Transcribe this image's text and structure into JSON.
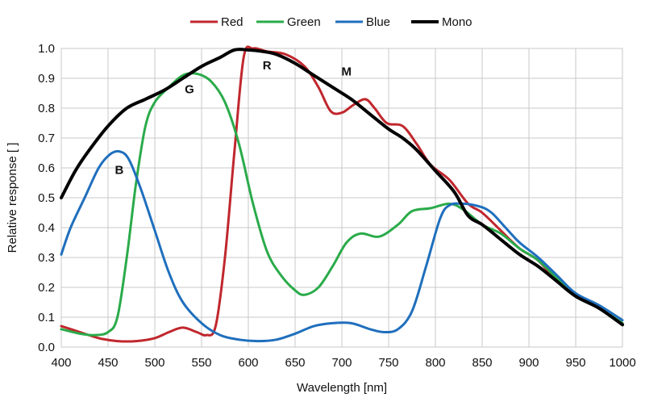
{
  "chart_data": {
    "type": "line",
    "title": "",
    "xlabel": "Wavelength [nm]",
    "ylabel": "Relative response [ ]",
    "xlim": [
      400,
      1000
    ],
    "ylim": [
      0.0,
      1.0
    ],
    "x_ticks": [
      "400",
      "450",
      "500",
      "550",
      "600",
      "650",
      "700",
      "750",
      "800",
      "850",
      "900",
      "950",
      "1000"
    ],
    "y_ticks": [
      "0.0",
      "0.1",
      "0.2",
      "0.3",
      "0.4",
      "0.5",
      "0.6",
      "0.7",
      "0.8",
      "0.9",
      "1.0"
    ],
    "x_tick_values": [
      400,
      450,
      500,
      550,
      600,
      650,
      700,
      750,
      800,
      850,
      900,
      950,
      1000
    ],
    "y_tick_values": [
      0,
      0.1,
      0.2,
      0.3,
      0.4,
      0.5,
      0.6,
      0.7,
      0.8,
      0.9,
      1.0
    ],
    "grid": true,
    "legend_position": "top",
    "series": [
      {
        "name": "Red",
        "color": "#c0272d",
        "width": 3,
        "points": [
          [
            400,
            0.07
          ],
          [
            420,
            0.05
          ],
          [
            440,
            0.03
          ],
          [
            460,
            0.02
          ],
          [
            480,
            0.02
          ],
          [
            500,
            0.03
          ],
          [
            515,
            0.05
          ],
          [
            530,
            0.065
          ],
          [
            545,
            0.05
          ],
          [
            555,
            0.04
          ],
          [
            565,
            0.07
          ],
          [
            575,
            0.3
          ],
          [
            585,
            0.65
          ],
          [
            595,
            0.97
          ],
          [
            605,
            1.0
          ],
          [
            620,
            0.99
          ],
          [
            640,
            0.98
          ],
          [
            660,
            0.94
          ],
          [
            675,
            0.87
          ],
          [
            688,
            0.79
          ],
          [
            700,
            0.785
          ],
          [
            712,
            0.81
          ],
          [
            725,
            0.83
          ],
          [
            735,
            0.8
          ],
          [
            748,
            0.75
          ],
          [
            765,
            0.74
          ],
          [
            780,
            0.68
          ],
          [
            795,
            0.61
          ],
          [
            815,
            0.56
          ],
          [
            835,
            0.48
          ],
          [
            850,
            0.45
          ],
          [
            870,
            0.39
          ],
          [
            890,
            0.33
          ],
          [
            910,
            0.29
          ],
          [
            930,
            0.22
          ],
          [
            950,
            0.17
          ],
          [
            970,
            0.14
          ],
          [
            990,
            0.1
          ],
          [
            1000,
            0.08
          ]
        ]
      },
      {
        "name": "Green",
        "color": "#2aab4a",
        "width": 3,
        "points": [
          [
            400,
            0.06
          ],
          [
            420,
            0.045
          ],
          [
            435,
            0.04
          ],
          [
            450,
            0.05
          ],
          [
            460,
            0.1
          ],
          [
            470,
            0.3
          ],
          [
            480,
            0.55
          ],
          [
            490,
            0.74
          ],
          [
            500,
            0.82
          ],
          [
            515,
            0.87
          ],
          [
            530,
            0.91
          ],
          [
            545,
            0.915
          ],
          [
            560,
            0.89
          ],
          [
            575,
            0.82
          ],
          [
            590,
            0.68
          ],
          [
            605,
            0.48
          ],
          [
            620,
            0.32
          ],
          [
            635,
            0.24
          ],
          [
            650,
            0.19
          ],
          [
            660,
            0.175
          ],
          [
            675,
            0.2
          ],
          [
            690,
            0.27
          ],
          [
            705,
            0.35
          ],
          [
            720,
            0.38
          ],
          [
            740,
            0.37
          ],
          [
            760,
            0.41
          ],
          [
            775,
            0.455
          ],
          [
            795,
            0.465
          ],
          [
            815,
            0.48
          ],
          [
            830,
            0.46
          ],
          [
            850,
            0.41
          ],
          [
            870,
            0.38
          ],
          [
            890,
            0.33
          ],
          [
            910,
            0.29
          ],
          [
            930,
            0.23
          ],
          [
            950,
            0.17
          ],
          [
            975,
            0.13
          ],
          [
            1000,
            0.08
          ]
        ]
      },
      {
        "name": "Blue",
        "color": "#1f6fbd",
        "width": 3,
        "points": [
          [
            400,
            0.31
          ],
          [
            410,
            0.4
          ],
          [
            425,
            0.5
          ],
          [
            440,
            0.6
          ],
          [
            452,
            0.645
          ],
          [
            462,
            0.655
          ],
          [
            472,
            0.63
          ],
          [
            485,
            0.53
          ],
          [
            500,
            0.39
          ],
          [
            515,
            0.25
          ],
          [
            530,
            0.15
          ],
          [
            550,
            0.08
          ],
          [
            570,
            0.04
          ],
          [
            590,
            0.025
          ],
          [
            610,
            0.02
          ],
          [
            630,
            0.025
          ],
          [
            650,
            0.045
          ],
          [
            670,
            0.07
          ],
          [
            690,
            0.08
          ],
          [
            710,
            0.08
          ],
          [
            730,
            0.06
          ],
          [
            745,
            0.05
          ],
          [
            760,
            0.06
          ],
          [
            775,
            0.12
          ],
          [
            790,
            0.27
          ],
          [
            805,
            0.43
          ],
          [
            815,
            0.475
          ],
          [
            830,
            0.48
          ],
          [
            848,
            0.47
          ],
          [
            860,
            0.45
          ],
          [
            875,
            0.4
          ],
          [
            890,
            0.35
          ],
          [
            910,
            0.3
          ],
          [
            930,
            0.24
          ],
          [
            950,
            0.18
          ],
          [
            975,
            0.14
          ],
          [
            1000,
            0.09
          ]
        ]
      },
      {
        "name": "Mono",
        "color": "#000000",
        "width": 4,
        "points": [
          [
            400,
            0.5
          ],
          [
            415,
            0.59
          ],
          [
            430,
            0.66
          ],
          [
            450,
            0.74
          ],
          [
            470,
            0.8
          ],
          [
            490,
            0.83
          ],
          [
            510,
            0.86
          ],
          [
            530,
            0.9
          ],
          [
            550,
            0.94
          ],
          [
            570,
            0.97
          ],
          [
            585,
            0.995
          ],
          [
            600,
            0.995
          ],
          [
            615,
            0.99
          ],
          [
            630,
            0.98
          ],
          [
            650,
            0.95
          ],
          [
            670,
            0.91
          ],
          [
            690,
            0.87
          ],
          [
            710,
            0.83
          ],
          [
            730,
            0.78
          ],
          [
            750,
            0.73
          ],
          [
            765,
            0.7
          ],
          [
            780,
            0.66
          ],
          [
            800,
            0.59
          ],
          [
            820,
            0.52
          ],
          [
            835,
            0.44
          ],
          [
            850,
            0.41
          ],
          [
            870,
            0.36
          ],
          [
            890,
            0.31
          ],
          [
            910,
            0.27
          ],
          [
            930,
            0.22
          ],
          [
            950,
            0.17
          ],
          [
            975,
            0.13
          ],
          [
            1000,
            0.075
          ]
        ]
      }
    ],
    "annotations": [
      {
        "text": "R",
        "x": 620,
        "y": 0.93
      },
      {
        "text": "M",
        "x": 705,
        "y": 0.91
      },
      {
        "text": "G",
        "x": 537,
        "y": 0.85
      },
      {
        "text": "B",
        "x": 462,
        "y": 0.58
      }
    ]
  }
}
